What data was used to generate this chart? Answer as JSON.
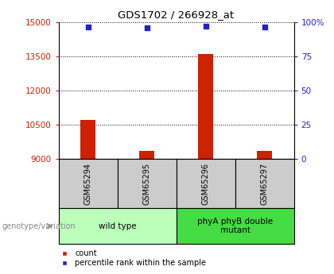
{
  "title": "GDS1702 / 266928_at",
  "samples": [
    "GSM65294",
    "GSM65295",
    "GSM65296",
    "GSM65297"
  ],
  "count_values": [
    10700,
    9350,
    13600,
    9350
  ],
  "percentile_values": [
    96.5,
    95.5,
    97.0,
    96.5
  ],
  "ymin": 9000,
  "ymax": 15000,
  "yticks": [
    9000,
    10500,
    12000,
    13500,
    15000
  ],
  "right_yticks": [
    0,
    25,
    50,
    75,
    100
  ],
  "right_ylabels": [
    "0",
    "25",
    "50",
    "75",
    "100%"
  ],
  "groups": [
    {
      "label": "wild type",
      "span": [
        0,
        2
      ],
      "color": "#bbffbb"
    },
    {
      "label": "phyA phyB double\nmutant",
      "span": [
        2,
        4
      ],
      "color": "#44dd44"
    }
  ],
  "bar_color": "#cc2200",
  "dot_color": "#2222cc",
  "bar_width": 0.25,
  "left_tick_color": "#cc2200",
  "right_tick_color": "#2222cc",
  "legend_items": [
    {
      "label": "count",
      "color": "#cc2200"
    },
    {
      "label": "percentile rank within the sample",
      "color": "#2222cc"
    }
  ],
  "xlabel_text": "genotype/variation",
  "sample_box_color": "#cccccc"
}
